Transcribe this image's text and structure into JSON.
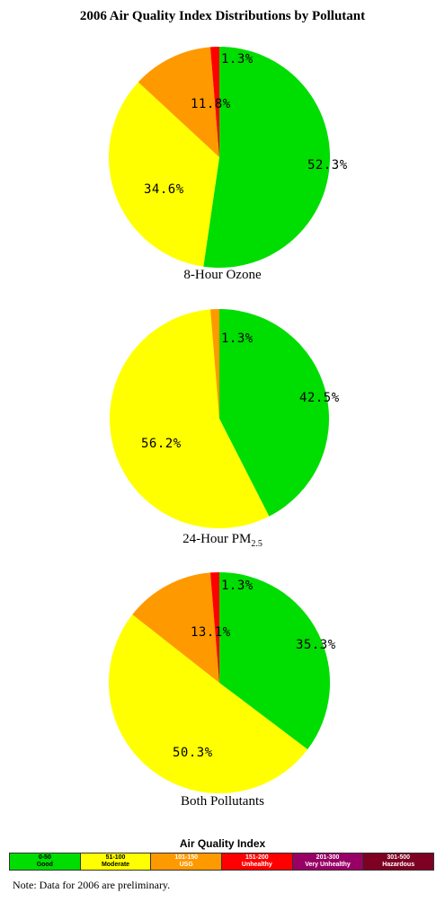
{
  "title": "2006 Air Quality Index Distributions by Pollutant",
  "colors": {
    "good": "#00dd00",
    "moderate": "#ffff00",
    "usg": "#ff9900",
    "unhealthy": "#ff0000",
    "very_unhealthy": "#990066",
    "hazardous": "#7e0023"
  },
  "chart_data": [
    {
      "type": "pie",
      "title": "8-Hour Ozone",
      "slices": [
        {
          "category": "Good",
          "value": 52.3,
          "label": "52.3%",
          "color": "#00dd00"
        },
        {
          "category": "Moderate",
          "value": 34.6,
          "label": "34.6%",
          "color": "#ffff00"
        },
        {
          "category": "USG",
          "value": 11.8,
          "label": "11.8%",
          "color": "#ff9900"
        },
        {
          "category": "Unhealthy",
          "value": 1.3,
          "label": "1.3%",
          "color": "#ff0000"
        }
      ]
    },
    {
      "type": "pie",
      "title_main": "24-Hour PM",
      "title_sub": "2.5",
      "slices": [
        {
          "category": "Good",
          "value": 42.5,
          "label": "42.5%",
          "color": "#00dd00"
        },
        {
          "category": "Moderate",
          "value": 56.2,
          "label": "56.2%",
          "color": "#ffff00"
        },
        {
          "category": "USG",
          "value": 1.3,
          "label": "1.3%",
          "color": "#ff9900"
        }
      ]
    },
    {
      "type": "pie",
      "title": "Both Pollutants",
      "slices": [
        {
          "category": "Good",
          "value": 35.3,
          "label": "35.3%",
          "color": "#00dd00"
        },
        {
          "category": "Moderate",
          "value": 50.3,
          "label": "50.3%",
          "color": "#ffff00"
        },
        {
          "category": "USG",
          "value": 13.1,
          "label": "13.1%",
          "color": "#ff9900"
        },
        {
          "category": "Unhealthy",
          "value": 1.3,
          "label": "1.3%",
          "color": "#ff0000"
        }
      ]
    }
  ],
  "legend": {
    "title": "Air Quality Index",
    "items": [
      {
        "range": "0-50",
        "name": "Good",
        "color": "#00dd00",
        "text_color": "#000000"
      },
      {
        "range": "51-100",
        "name": "Moderate",
        "color": "#ffff00",
        "text_color": "#000000"
      },
      {
        "range": "101-150",
        "name": "USG",
        "color": "#ff9900",
        "text_color": "#ffffff"
      },
      {
        "range": "151-200",
        "name": "Unhealthy",
        "color": "#ff0000",
        "text_color": "#ffffff"
      },
      {
        "range": "201-300",
        "name": "Very Unhealthy",
        "color": "#990066",
        "text_color": "#ffffff"
      },
      {
        "range": "301-500",
        "name": "Hazardous",
        "color": "#7e0023",
        "text_color": "#ffffff"
      }
    ]
  },
  "note": "Note:  Data for 2006 are preliminary."
}
